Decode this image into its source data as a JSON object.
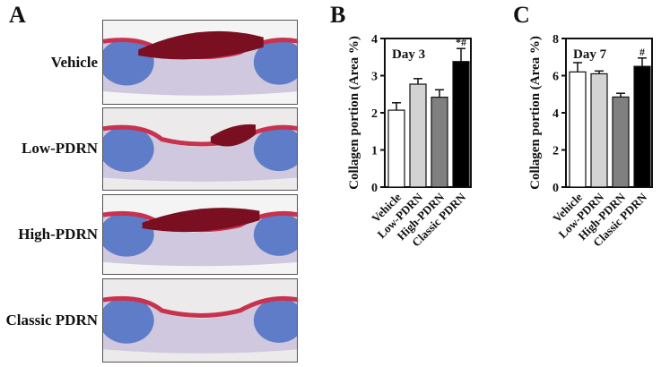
{
  "panels": {
    "a": {
      "letter": "A",
      "rows": [
        "Vehicle",
        "Low-PDRN",
        "High-PDRN",
        "Classic PDRN"
      ]
    },
    "b": {
      "letter": "B"
    },
    "c": {
      "letter": "C"
    }
  },
  "colors": {
    "Vehicle": "#ffffff",
    "Low-PDRN": "#d3d3d3",
    "High-PDRN": "#808080",
    "Classic PDRN": "#000000",
    "stain_collagen": "#4a6fc4",
    "stain_muscle": "#c8324f",
    "crust": "#7a0f22"
  },
  "chart_data": [
    {
      "type": "bar",
      "panel": "B",
      "annotation": "Day 3",
      "categories": [
        "Vehicle",
        "Low-PDRN",
        "High-PDRN",
        "Classic PDRN"
      ],
      "values": [
        2.07,
        2.77,
        2.42,
        3.38
      ],
      "errors": [
        0.2,
        0.15,
        0.2,
        0.35
      ],
      "significance": [
        "",
        "",
        "",
        "*#"
      ],
      "ylabel": "Collagen portion (Area %)",
      "ylim": [
        0,
        4
      ],
      "yticks": [
        "0",
        "1",
        "2",
        "3",
        "4"
      ]
    },
    {
      "type": "bar",
      "panel": "C",
      "annotation": "Day 7",
      "categories": [
        "Vehicle",
        "Low-PDRN",
        "High-PDRN",
        "Classic PDRN"
      ],
      "values": [
        6.2,
        6.1,
        4.85,
        6.5
      ],
      "errors": [
        0.5,
        0.15,
        0.2,
        0.45
      ],
      "significance": [
        "",
        "",
        "",
        "#"
      ],
      "ylabel": "Collagen portion (Area %)",
      "ylim": [
        0,
        8
      ],
      "yticks": [
        "0",
        "2",
        "4",
        "6",
        "8"
      ]
    }
  ]
}
